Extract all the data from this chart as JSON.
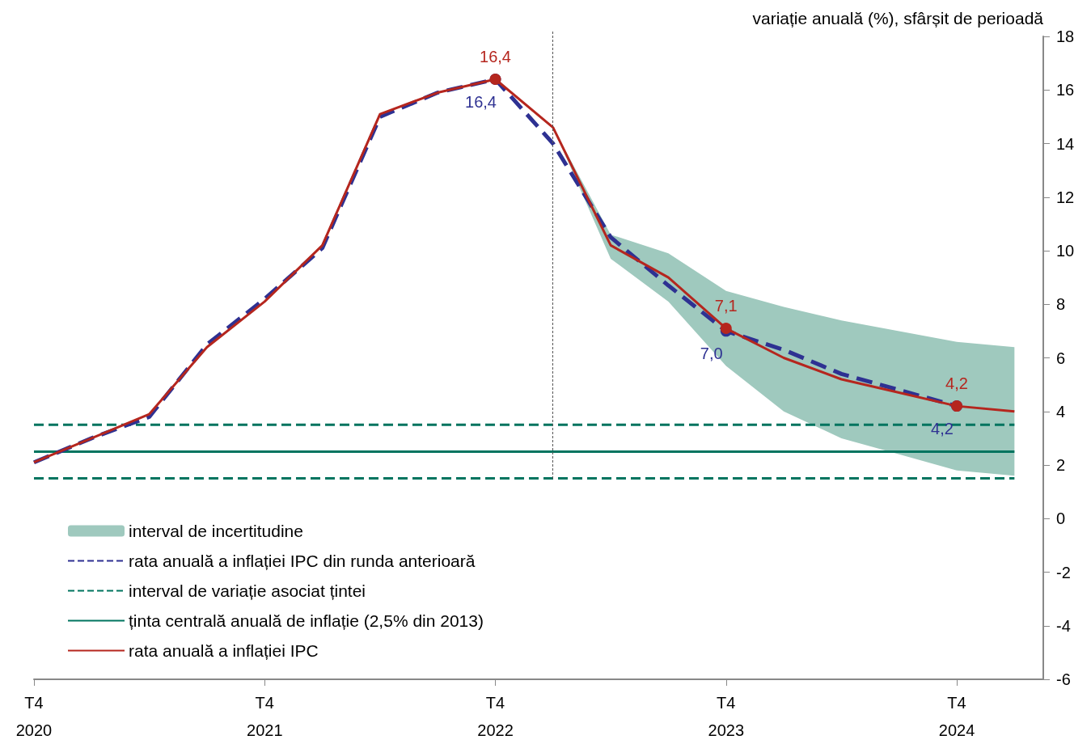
{
  "chart_data": {
    "type": "line",
    "ylabel": "variație anuală (%), sfârșit de perioadă",
    "categories": [
      "T4\n2020",
      null,
      null,
      null,
      "T4\n2021",
      null,
      null,
      null,
      "T4\n2022",
      null,
      null,
      null,
      "T4\n2023",
      null,
      null,
      null,
      "T4\n2024",
      null
    ],
    "ylim": [
      -6,
      18
    ],
    "yticks": [
      -6,
      -4,
      -2,
      0,
      2,
      4,
      6,
      8,
      10,
      12,
      14,
      16,
      18
    ],
    "series": [
      {
        "name": "interval de incertitudine",
        "type": "area",
        "color": "#9fc9be",
        "values": [
          null,
          null,
          null,
          null,
          null,
          null,
          null,
          null,
          null,
          null,
          null,
          null,
          null,
          null,
          null,
          null,
          null,
          null
        ],
        "lower": [
          null,
          null,
          null,
          null,
          null,
          null,
          null,
          null,
          null,
          14.6,
          9.7,
          8.1,
          5.7,
          4.0,
          3.0,
          2.4,
          1.8,
          1.6
        ],
        "upper": [
          null,
          null,
          null,
          null,
          null,
          null,
          null,
          null,
          null,
          14.6,
          10.6,
          9.9,
          8.5,
          7.9,
          7.4,
          7.0,
          6.6,
          6.4
        ]
      },
      {
        "name": "rata anuală a inflației IPC din runda anterioară",
        "color": "#2e3192",
        "line_style": "dashed",
        "values": [
          2.1,
          3.0,
          3.8,
          6.5,
          8.2,
          10.1,
          15.0,
          15.9,
          16.4,
          14.0,
          10.5,
          8.7,
          7.0,
          6.3,
          5.4,
          4.8,
          4.2,
          null
        ],
        "value_labels": [
          null,
          null,
          null,
          null,
          null,
          null,
          null,
          null,
          "16,4",
          null,
          null,
          null,
          "7,0",
          null,
          null,
          null,
          "4,2",
          null
        ]
      },
      {
        "name": "interval de variație asociat țintei",
        "color": "#00745f",
        "line_style": "dashed",
        "values": [
          3.5,
          3.5,
          3.5,
          3.5,
          3.5,
          3.5,
          3.5,
          3.5,
          3.5,
          3.5,
          3.5,
          3.5,
          3.5,
          3.5,
          3.5,
          3.5,
          3.5,
          3.5
        ]
      },
      {
        "color": "#00745f",
        "line_style": "dashed",
        "values": [
          1.5,
          1.5,
          1.5,
          1.5,
          1.5,
          1.5,
          1.5,
          1.5,
          1.5,
          1.5,
          1.5,
          1.5,
          1.5,
          1.5,
          1.5,
          1.5,
          1.5,
          1.5
        ]
      },
      {
        "name": "ținta centrală anuală de inflație (2,5% din 2013)",
        "color": "#00745f",
        "line_style": "solid",
        "values": [
          2.5,
          2.5,
          2.5,
          2.5,
          2.5,
          2.5,
          2.5,
          2.5,
          2.5,
          2.5,
          2.5,
          2.5,
          2.5,
          2.5,
          2.5,
          2.5,
          2.5,
          2.5
        ]
      },
      {
        "name": "rata anuală a inflației IPC",
        "color": "#b5261e",
        "line_style": "solid",
        "values": [
          2.1,
          3.0,
          3.9,
          6.4,
          8.1,
          10.2,
          15.1,
          15.9,
          16.4,
          14.6,
          10.2,
          9.0,
          7.1,
          6.0,
          5.2,
          4.7,
          4.2,
          4.0
        ],
        "value_labels": [
          null,
          null,
          null,
          null,
          null,
          null,
          null,
          null,
          "16,4",
          null,
          null,
          null,
          "7,1",
          null,
          null,
          null,
          "4,2",
          null
        ]
      }
    ],
    "legend": "bottom left",
    "grid": false
  }
}
